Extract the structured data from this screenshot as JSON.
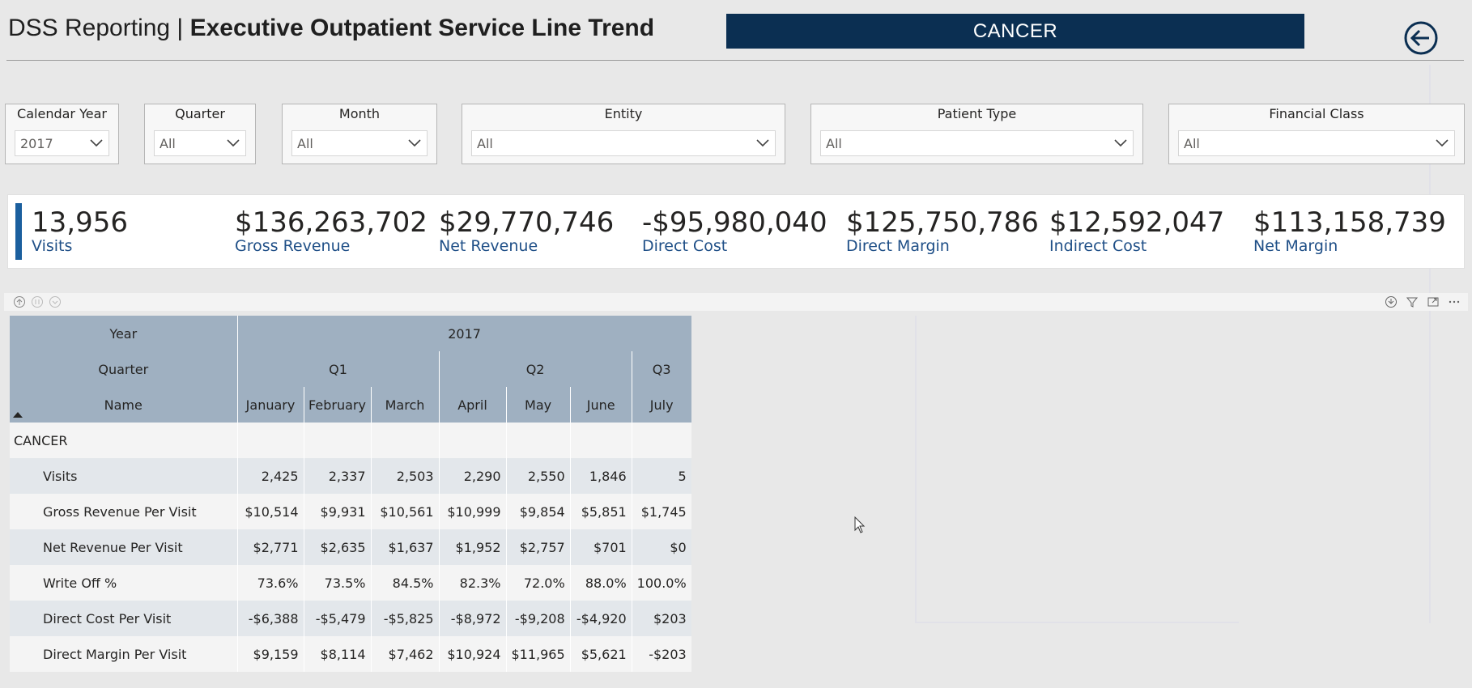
{
  "header": {
    "title_prefix": "DSS Reporting | ",
    "title_main": "Executive Outpatient Service Line Trend",
    "banner": "CANCER"
  },
  "slicers": [
    {
      "label": "Calendar Year",
      "value": "2017"
    },
    {
      "label": "Quarter",
      "value": "All"
    },
    {
      "label": "Month",
      "value": "All"
    },
    {
      "label": "Entity",
      "value": "All"
    },
    {
      "label": "Patient Type",
      "value": "All"
    },
    {
      "label": "Financial Class",
      "value": "All"
    }
  ],
  "kpis": [
    {
      "value": "13,956",
      "label": "Visits"
    },
    {
      "value": "$136,263,702",
      "label": "Gross Revenue"
    },
    {
      "value": "$29,770,746",
      "label": "Net Revenue"
    },
    {
      "value": "-$95,980,040",
      "label": "Direct Cost"
    },
    {
      "value": "$125,750,786",
      "label": "Direct Margin"
    },
    {
      "value": "$12,592,047",
      "label": "Indirect Cost"
    },
    {
      "value": "$113,158,739",
      "label": "Net Margin"
    }
  ],
  "matrix": {
    "row_headers": {
      "year": "Year",
      "quarter": "Quarter",
      "name": "Name"
    },
    "year": "2017",
    "quarters": [
      "Q1",
      "Q2",
      "Q3"
    ],
    "months": [
      "January",
      "February",
      "March",
      "April",
      "May",
      "June",
      "July"
    ],
    "group": "CANCER",
    "rows": [
      {
        "name": "Visits",
        "values": [
          "2,425",
          "2,337",
          "2,503",
          "2,290",
          "2,550",
          "1,846",
          "5"
        ]
      },
      {
        "name": "Gross Revenue Per Visit",
        "values": [
          "$10,514",
          "$9,931",
          "$10,561",
          "$10,999",
          "$9,854",
          "$5,851",
          "$1,745"
        ]
      },
      {
        "name": "Net Revenue Per Visit",
        "values": [
          "$2,771",
          "$2,635",
          "$1,637",
          "$1,952",
          "$2,757",
          "$701",
          "$0"
        ]
      },
      {
        "name": "Write Off %",
        "values": [
          "73.6%",
          "73.5%",
          "84.5%",
          "82.3%",
          "72.0%",
          "88.0%",
          "100.0%"
        ]
      },
      {
        "name": "Direct Cost Per Visit",
        "values": [
          "-$6,388",
          "-$5,479",
          "-$5,825",
          "-$8,972",
          "-$9,208",
          "-$4,920",
          "$203"
        ]
      },
      {
        "name": "Direct Margin Per Visit",
        "values": [
          "$9,159",
          "$8,114",
          "$7,462",
          "$10,924",
          "$11,965",
          "$5,621",
          "-$203"
        ]
      }
    ]
  },
  "colors": {
    "banner": "#0b2f52",
    "kpi_label": "#1f4f87",
    "accent": "#1b5f9e",
    "matrix_header": "#9fb0c1"
  },
  "icons": {
    "back": "back-arrow-circle-icon",
    "dropdown": "chevron-down-icon"
  }
}
